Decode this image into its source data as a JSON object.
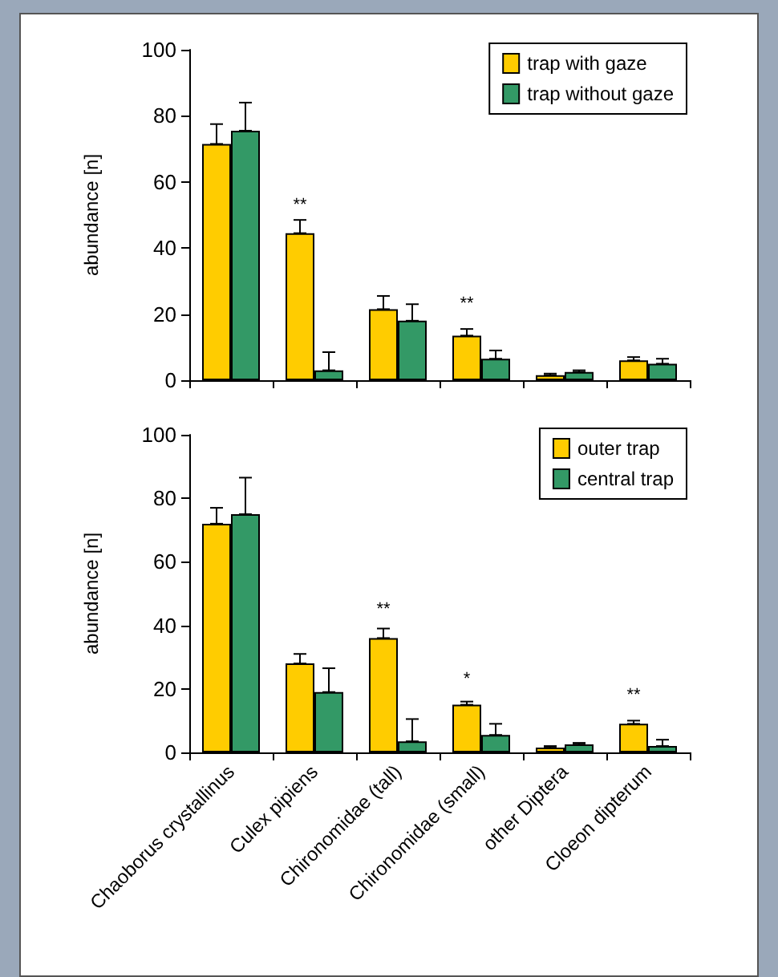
{
  "chart_data": [
    {
      "type": "bar",
      "ylabel": "abundance [n]",
      "categories": [
        null,
        null,
        null,
        null,
        null,
        null
      ],
      "series": [
        {
          "name": "trap with gaze",
          "color": "#ffcc00",
          "values": [
            71.5,
            44.5,
            21.5,
            13.5,
            1.5,
            6
          ],
          "errors": [
            [
              71.5,
              77.5
            ],
            [
              44.5,
              48.5
            ],
            [
              21.5,
              25.5
            ],
            [
              13.5,
              15.5
            ],
            [
              1.5,
              2
            ],
            [
              6,
              7
            ]
          ]
        },
        {
          "name": "trap without gaze",
          "color": "#339966",
          "values": [
            75.5,
            3,
            18,
            6.5,
            2.5,
            5
          ],
          "errors": [
            [
              75.5,
              84
            ],
            [
              3,
              8.5
            ],
            [
              18,
              23
            ],
            [
              6.5,
              9
            ],
            [
              2.5,
              3
            ],
            [
              5,
              6.5
            ]
          ]
        }
      ],
      "ylim": [
        0,
        100
      ],
      "yticks": [
        0,
        20,
        40,
        60,
        80,
        100
      ],
      "legend": "top right",
      "tick_labels": "y",
      "annotations": [
        "**",
        "**"
      ]
    },
    {
      "type": "bar",
      "ylabel": "abundance [n]",
      "categories": [
        "Chaoborus crystallinus",
        "Culex pipiens",
        "Chironomidae (tall)",
        "Chironomidae (small)",
        "other Diptera",
        "Cloeon dipterum"
      ],
      "series": [
        {
          "name": "outer trap",
          "color": "#ffcc00",
          "values": [
            72,
            28,
            36,
            15,
            1.5,
            9
          ],
          "errors": [
            [
              72,
              77
            ],
            [
              28,
              31
            ],
            [
              36,
              39
            ],
            [
              15,
              16
            ],
            [
              1.5,
              2
            ],
            [
              9,
              10
            ]
          ]
        },
        {
          "name": "central trap",
          "color": "#339966",
          "values": [
            75,
            19,
            3.5,
            5.5,
            2.5,
            2
          ],
          "errors": [
            [
              75,
              86.5
            ],
            [
              19,
              26.5
            ],
            [
              3.5,
              10.5
            ],
            [
              5.5,
              9
            ],
            [
              2.5,
              3
            ],
            [
              2,
              4
            ]
          ]
        }
      ],
      "ylim": [
        0,
        100
      ],
      "yticks": [
        0,
        20,
        40,
        60,
        80,
        100
      ],
      "legend": "top right",
      "annotations": [
        "**",
        "*",
        "**"
      ]
    }
  ]
}
